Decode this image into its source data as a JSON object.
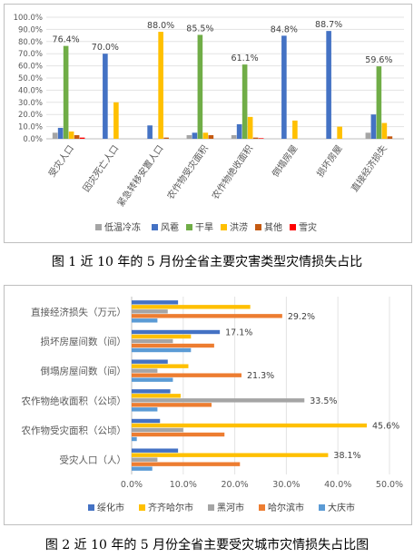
{
  "figures": [
    {
      "caption": "图 1  近 10 年的 5 月份全省主要灾害类型灾情损失占比"
    },
    {
      "caption": "图 2  近 10 年的 5 月份全省主要受灾城市灾情损失占比图"
    }
  ],
  "chart_data": [
    {
      "type": "bar",
      "orientation": "vertical",
      "title": "",
      "xlabel": "",
      "ylabel": "",
      "ylim": [
        0,
        100
      ],
      "yticks": [
        "0.0%",
        "10.0%",
        "20.0%",
        "30.0%",
        "40.0%",
        "50.0%",
        "60.0%",
        "70.0%",
        "80.0%",
        "90.0%",
        "100.0%"
      ],
      "categories": [
        "受灾人口",
        "因灾死亡人口",
        "紧急转移安置人口",
        "农作物受灾面积",
        "农作物绝收面积",
        "倒塌房屋",
        "损坏房屋",
        "直接经济损失"
      ],
      "series": [
        {
          "name": "低温冷冻",
          "color": "#a5a5a5",
          "values": [
            5,
            0,
            0,
            3,
            3,
            0,
            0,
            5
          ]
        },
        {
          "name": "风雹",
          "color": "#4472c4",
          "values": [
            9,
            70,
            11,
            5,
            12,
            84.8,
            88.7,
            20
          ]
        },
        {
          "name": "干旱",
          "color": "#70ad47",
          "values": [
            76.4,
            0,
            0,
            85.5,
            61.1,
            0,
            0,
            59.6
          ]
        },
        {
          "name": "洪涝",
          "color": "#ffc000",
          "values": [
            6,
            30,
            88.0,
            5,
            18,
            15,
            10,
            13
          ]
        },
        {
          "name": "其他",
          "color": "#c55a11",
          "values": [
            3,
            0,
            1,
            3,
            1,
            0,
            0,
            2
          ]
        },
        {
          "name": "雪灾",
          "color": "#ff0000",
          "values": [
            1,
            0,
            0,
            0,
            0.5,
            0,
            0,
            0
          ]
        }
      ],
      "data_labels": [
        {
          "category": "受灾人口",
          "series": "干旱",
          "text": "76.4%"
        },
        {
          "category": "因灾死亡人口",
          "series": "风雹",
          "text": "70.0%"
        },
        {
          "category": "紧急转移安置人口",
          "series": "洪涝",
          "text": "88.0%"
        },
        {
          "category": "农作物受灾面积",
          "series": "干旱",
          "text": "85.5%"
        },
        {
          "category": "农作物绝收面积",
          "series": "干旱",
          "text": "61.1%"
        },
        {
          "category": "倒塌房屋",
          "series": "风雹",
          "text": "84.8%"
        },
        {
          "category": "损坏房屋",
          "series": "风雹",
          "text": "88.7%"
        },
        {
          "category": "直接经济损失",
          "series": "干旱",
          "text": "59.6%"
        }
      ],
      "grid": true,
      "legend": "bottom"
    },
    {
      "type": "bar",
      "orientation": "horizontal",
      "title": "",
      "xlabel": "",
      "ylabel": "",
      "xlim": [
        0,
        50
      ],
      "xticks": [
        "0.0%",
        "10.0%",
        "20.0%",
        "30.0%",
        "40.0%",
        "50.0%"
      ],
      "categories": [
        "直接经济损失（万元）",
        "损坏房屋间数（间）",
        "倒塌房屋间数（间）",
        "农作物绝收面积（公顷）",
        "农作物受灾面积（公顷）",
        "受灾人口（人）"
      ],
      "series": [
        {
          "name": "绥化市",
          "color": "#4472c4",
          "values": [
            9,
            17.1,
            7,
            7.5,
            5.5,
            9
          ]
        },
        {
          "name": "齐齐哈尔市",
          "color": "#ffc000",
          "values": [
            23,
            11.5,
            11,
            9.5,
            45.6,
            38.1
          ]
        },
        {
          "name": "黑河市",
          "color": "#a5a5a5",
          "values": [
            7,
            8,
            5,
            33.5,
            10,
            5
          ]
        },
        {
          "name": "哈尔滨市",
          "color": "#ed7d31",
          "values": [
            29.2,
            16,
            21.3,
            15.5,
            18,
            21
          ]
        },
        {
          "name": "大庆市",
          "color": "#5b9bd5",
          "values": [
            5,
            11.5,
            8,
            5,
            1,
            4
          ]
        }
      ],
      "data_labels": [
        {
          "category": "直接经济损失（万元）",
          "series": "哈尔滨市",
          "text": "29.2%"
        },
        {
          "category": "损坏房屋间数（间）",
          "series": "绥化市",
          "text": "17.1%"
        },
        {
          "category": "倒塌房屋间数（间）",
          "series": "哈尔滨市",
          "text": "21.3%"
        },
        {
          "category": "农作物绝收面积（公顷）",
          "series": "黑河市",
          "text": "33.5%"
        },
        {
          "category": "农作物受灾面积（公顷）",
          "series": "齐齐哈尔市",
          "text": "45.6%"
        },
        {
          "category": "受灾人口（人）",
          "series": "齐齐哈尔市",
          "text": "38.1%"
        }
      ],
      "grid": true,
      "legend": "bottom"
    }
  ]
}
